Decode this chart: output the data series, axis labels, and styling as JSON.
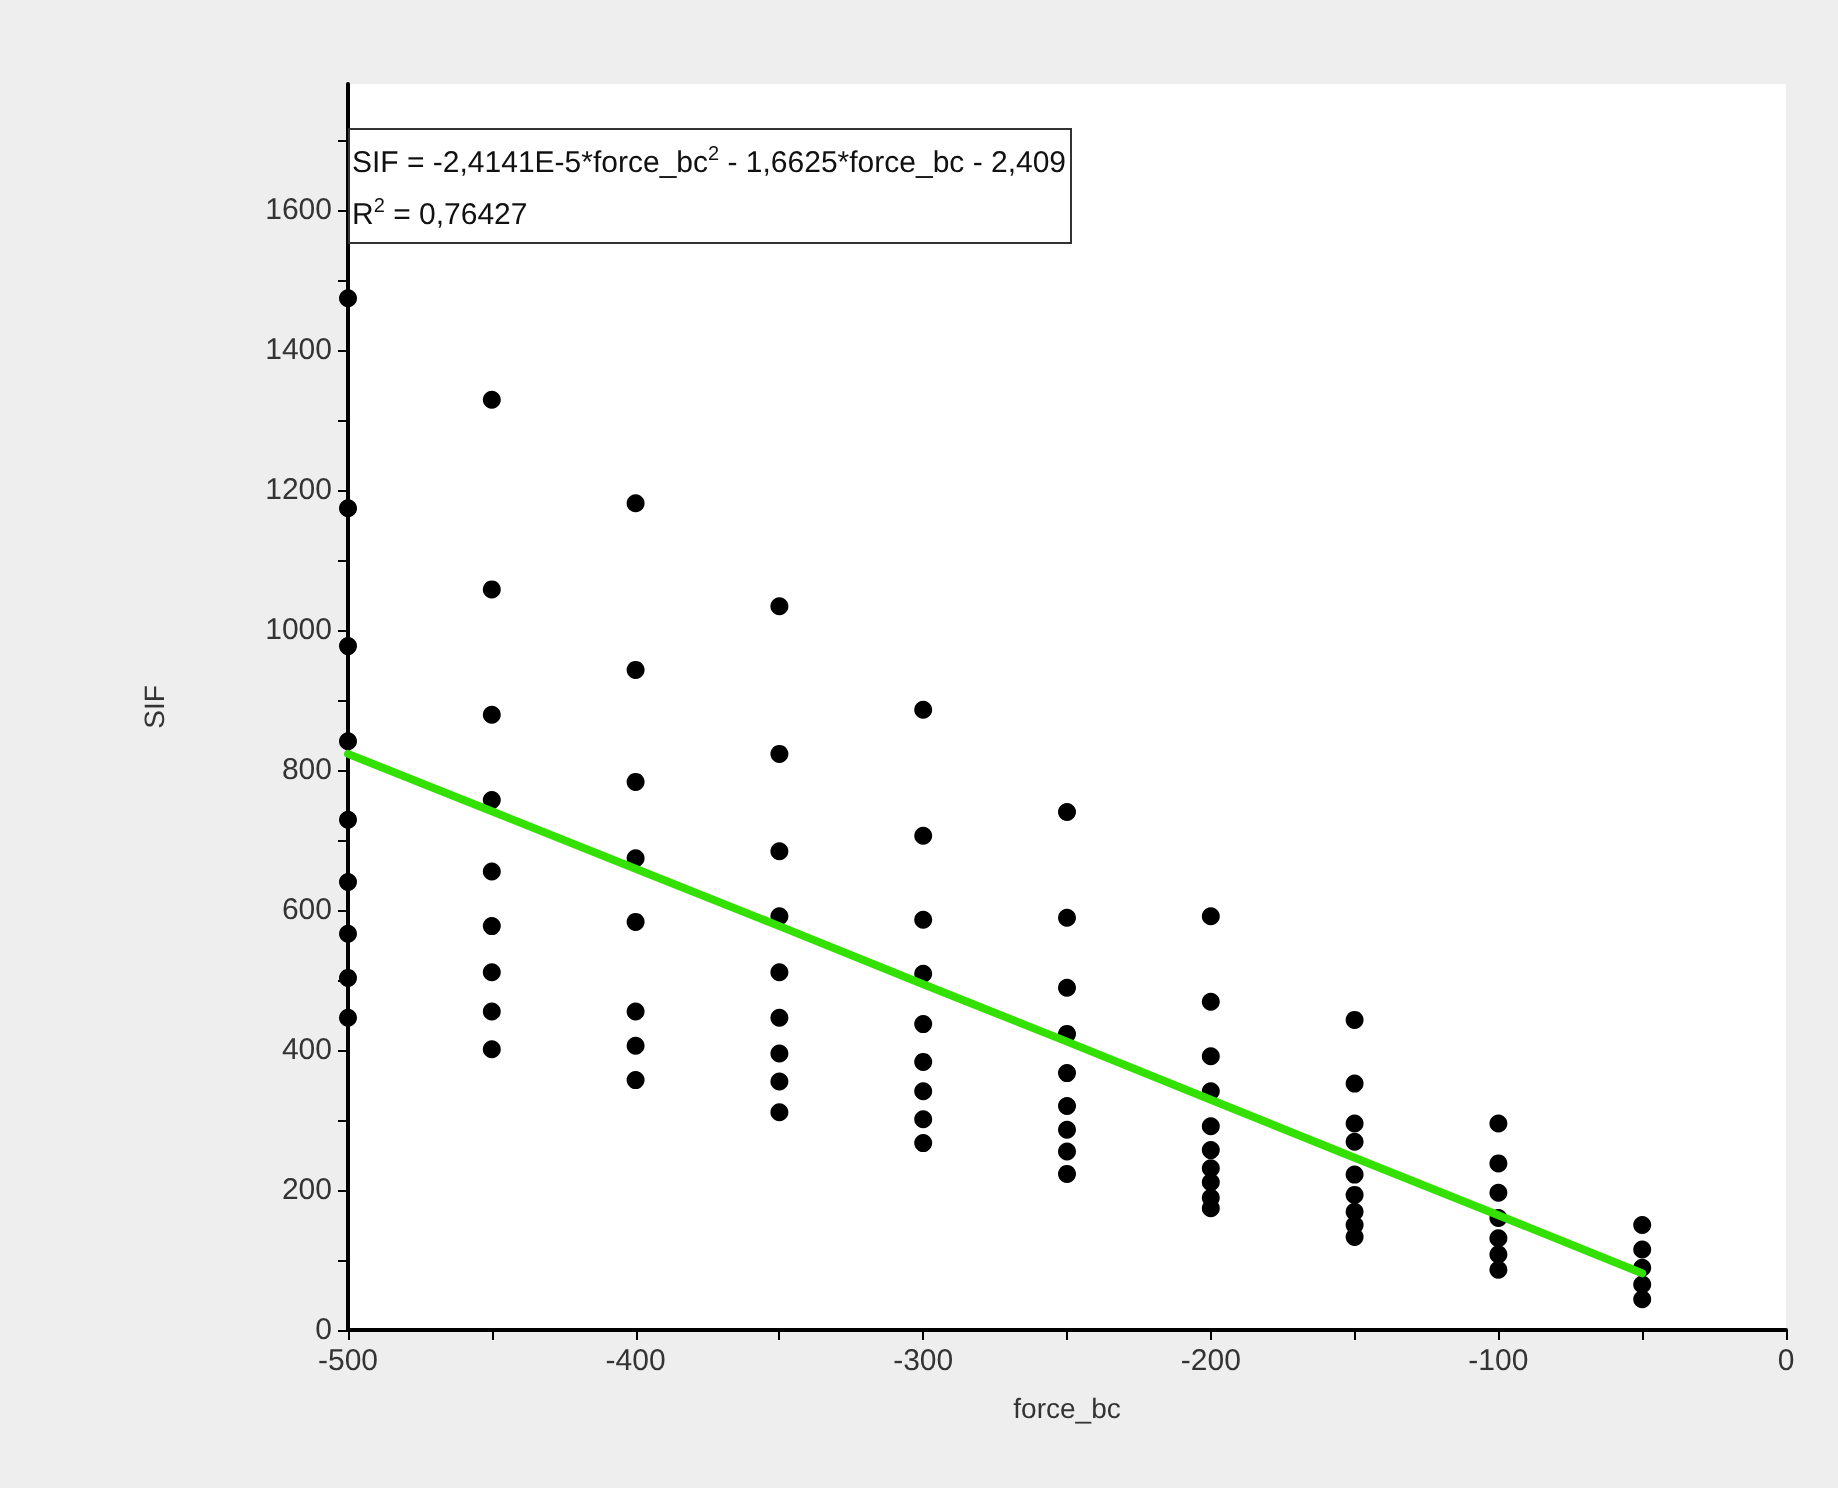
{
  "chart_data": {
    "type": "scatter",
    "xlabel": "force_bc",
    "ylabel": "SIF",
    "annotations": [
      "SIF = -2,4141E-5*force_bc$^{2}$ - 1,6625*force_bc - 2,409",
      "R$^{2}$ = 0,76427"
    ],
    "xlim": [
      -500,
      0
    ],
    "xticks": [
      -500,
      {
        "value": -450,
        "label": null
      },
      -400,
      {
        "value": -350,
        "label": null
      },
      -300,
      {
        "value": -250,
        "label": null
      },
      -200,
      {
        "value": -150,
        "label": null
      },
      -100,
      {
        "value": -50,
        "label": null
      },
      0
    ],
    "ylim": [
      0,
      1780
    ],
    "yticks": [
      0,
      {
        "value": 100,
        "label": null
      },
      200,
      {
        "value": 300,
        "label": null
      },
      400,
      {
        "value": 500,
        "label": null
      },
      600,
      {
        "value": 700,
        "label": null
      },
      800,
      {
        "value": 900,
        "label": null
      },
      1000,
      {
        "value": 1100,
        "label": null
      },
      1200,
      {
        "value": 1300,
        "label": null
      },
      1400,
      {
        "value": 1500,
        "label": null
      },
      1600,
      {
        "value": 1700,
        "label": null
      }
    ],
    "grid": false,
    "marker": "circle",
    "series": [
      {
        "color": "#000000",
        "x": [
          -500,
          -500,
          -500,
          -500,
          -500,
          -500,
          -500,
          -500,
          -500,
          -450,
          -450,
          -450,
          -450,
          -450,
          -450,
          -450,
          -450,
          -450,
          -400,
          -400,
          -400,
          -400,
          -400,
          -400,
          -400,
          -400,
          -350,
          -350,
          -350,
          -350,
          -350,
          -350,
          -350,
          -350,
          -350,
          -300,
          -300,
          -300,
          -300,
          -300,
          -300,
          -300,
          -300,
          -300,
          -250,
          -250,
          -250,
          -250,
          -250,
          -250,
          -250,
          -250,
          -250,
          -200,
          -200,
          -200,
          -200,
          -200,
          -200,
          -200,
          -200,
          -200,
          -200,
          -150,
          -150,
          -150,
          -150,
          -150,
          -150,
          -150,
          -150,
          -150,
          -100,
          -100,
          -100,
          -100,
          -100,
          -100,
          -100,
          -50,
          -50,
          -50,
          -50,
          -50
        ],
        "values": [
          1474,
          1174,
          977,
          841,
          729,
          640,
          566,
          503,
          446,
          1329,
          1058,
          879,
          757,
          655,
          577,
          511,
          455,
          401,
          1181,
          943,
          783,
          674,
          583,
          455,
          406,
          357,
          1034,
          823,
          684,
          591,
          511,
          446,
          395,
          355,
          311,
          886,
          706,
          586,
          509,
          437,
          383,
          341,
          301,
          267,
          740,
          589,
          489,
          423,
          367,
          320,
          286,
          255,
          223,
          591,
          469,
          391,
          341,
          291,
          257,
          231,
          211,
          189,
          174,
          443,
          352,
          295,
          269,
          222,
          193,
          169,
          150,
          133,
          295,
          238,
          196,
          160,
          131,
          108,
          86,
          150,
          115,
          89,
          65,
          44
        ]
      },
      {
        "type": "line",
        "color": "#33e000",
        "marker": "none",
        "line_style": "solid",
        "x": [
          -500,
          -450,
          -400,
          -350,
          -300,
          -250,
          -200,
          -150,
          -100,
          -50
        ],
        "values": [
          823,
          741,
          659,
          577,
          494,
          412,
          329,
          246,
          164,
          81
        ]
      }
    ]
  }
}
